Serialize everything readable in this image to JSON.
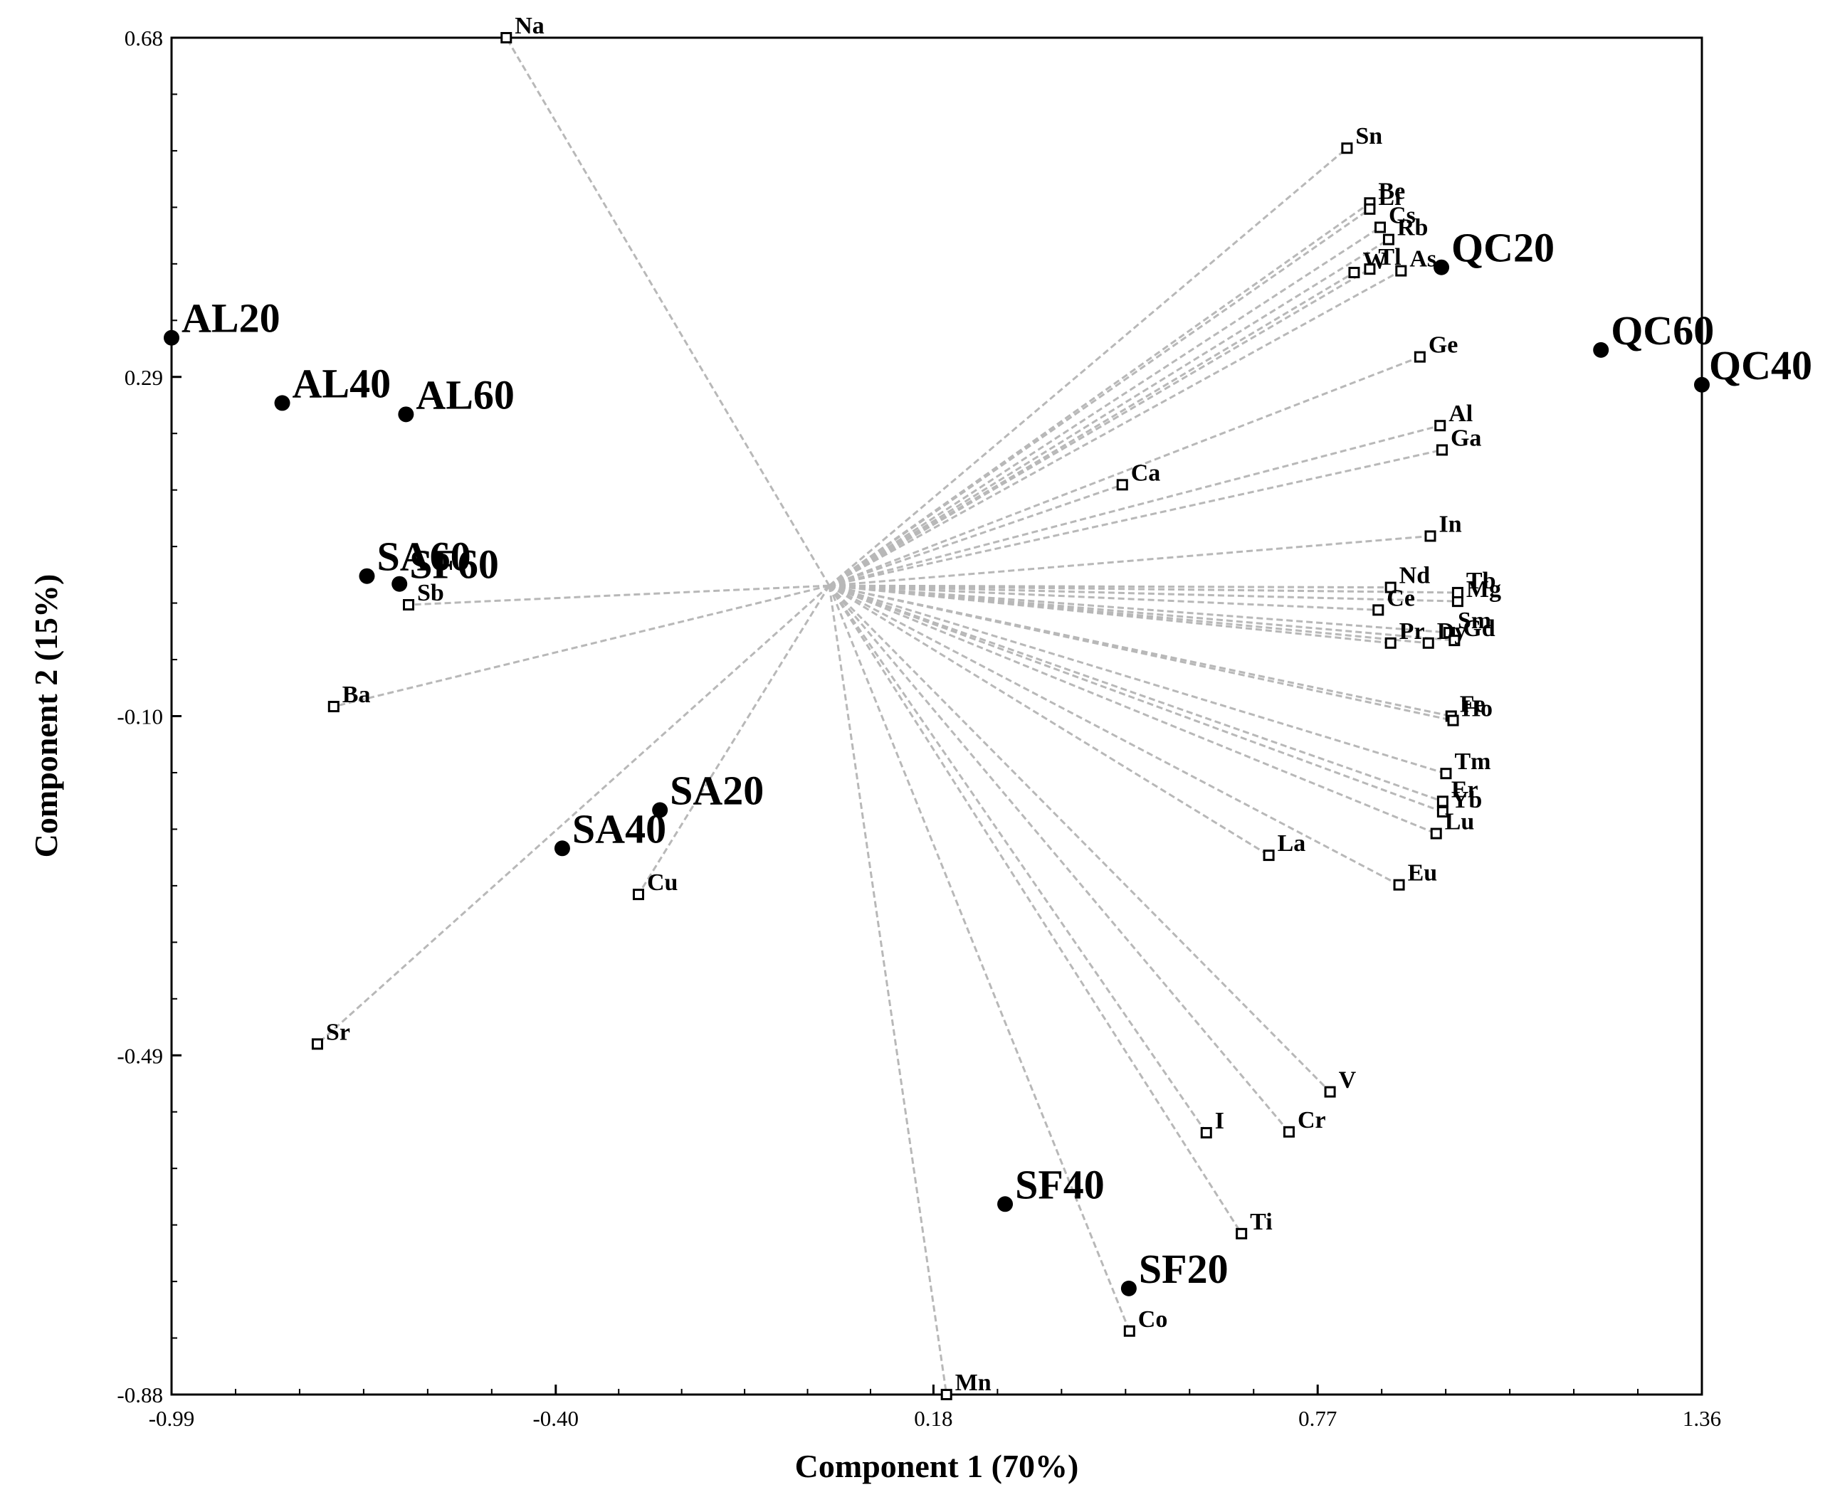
{
  "chart_data": {
    "type": "scatter",
    "title": "",
    "xlabel": "Component 1 (70%)",
    "ylabel": "Component 2 (15%)",
    "xlim": [
      -0.99,
      1.36
    ],
    "ylim": [
      -0.88,
      0.68
    ],
    "xticks": [
      "-0.99",
      "-0.40",
      "0.18",
      "0.77",
      "1.36"
    ],
    "yticks": [
      "0.68",
      "0.29",
      "-0.10",
      "-0.49",
      "-0.88"
    ],
    "origin": [
      0.02,
      0.05
    ],
    "samples": [
      {
        "name": "AL20",
        "x": -0.99,
        "y": 0.335
      },
      {
        "name": "AL40",
        "x": -0.82,
        "y": 0.26
      },
      {
        "name": "AL60",
        "x": -0.63,
        "y": 0.247
      },
      {
        "name": "SA60",
        "x": -0.69,
        "y": 0.061
      },
      {
        "name": "SF60",
        "x": -0.64,
        "y": 0.052
      },
      {
        "name": "SA20",
        "x": -0.24,
        "y": -0.208
      },
      {
        "name": "SA40",
        "x": -0.39,
        "y": -0.252
      },
      {
        "name": "SF40",
        "x": 0.29,
        "y": -0.661
      },
      {
        "name": "SF20",
        "x": 0.48,
        "y": -0.758
      },
      {
        "name": "QC20",
        "x": 0.96,
        "y": 0.416
      },
      {
        "name": "QC60",
        "x": 1.205,
        "y": 0.321
      },
      {
        "name": "QC40",
        "x": 1.36,
        "y": 0.281
      }
    ],
    "variables": [
      {
        "name": "Na",
        "x": -0.476,
        "y": 0.68
      },
      {
        "name": "Sn",
        "x": 0.815,
        "y": 0.553
      },
      {
        "name": "Be",
        "x": 0.85,
        "y": 0.49
      },
      {
        "name": "Li",
        "x": 0.85,
        "y": 0.483
      },
      {
        "name": "Cs",
        "x": 0.866,
        "y": 0.462
      },
      {
        "name": "W",
        "x": 0.826,
        "y": 0.41
      },
      {
        "name": "Rb",
        "x": 0.879,
        "y": 0.448
      },
      {
        "name": "Tl",
        "x": 0.85,
        "y": 0.414
      },
      {
        "name": "As",
        "x": 0.898,
        "y": 0.412
      },
      {
        "name": "Ge",
        "x": 0.927,
        "y": 0.313
      },
      {
        "name": "Al",
        "x": 0.958,
        "y": 0.234
      },
      {
        "name": "Ga",
        "x": 0.961,
        "y": 0.206
      },
      {
        "name": "Ca",
        "x": 0.47,
        "y": 0.166
      },
      {
        "name": "In",
        "x": 0.943,
        "y": 0.107
      },
      {
        "name": "Nd",
        "x": 0.882,
        "y": 0.048
      },
      {
        "name": "Mg",
        "x": 0.985,
        "y": 0.032
      },
      {
        "name": "Tb",
        "x": 0.985,
        "y": 0.042
      },
      {
        "name": "Ce",
        "x": 0.863,
        "y": 0.022
      },
      {
        "name": "Sm",
        "x": 0.972,
        "y": -0.004
      },
      {
        "name": "Gd",
        "x": 0.98,
        "y": -0.013
      },
      {
        "name": "Pr",
        "x": 0.882,
        "y": -0.016
      },
      {
        "name": "Dy",
        "x": 0.94,
        "y": -0.016
      },
      {
        "name": "Fe",
        "x": 0.975,
        "y": -0.1
      },
      {
        "name": "Ho",
        "x": 0.978,
        "y": -0.105
      },
      {
        "name": "Tm",
        "x": 0.967,
        "y": -0.166
      },
      {
        "name": "Er",
        "x": 0.962,
        "y": -0.198
      },
      {
        "name": "Yb",
        "x": 0.962,
        "y": -0.21
      },
      {
        "name": "Lu",
        "x": 0.952,
        "y": -0.235
      },
      {
        "name": "La",
        "x": 0.695,
        "y": -0.26
      },
      {
        "name": "Eu",
        "x": 0.895,
        "y": -0.294
      },
      {
        "name": "Sb",
        "x": -0.626,
        "y": 0.028
      },
      {
        "name": "Ba",
        "x": -0.741,
        "y": -0.089
      },
      {
        "name": "Cu",
        "x": -0.273,
        "y": -0.305
      },
      {
        "name": "Sr",
        "x": -0.766,
        "y": -0.477
      },
      {
        "name": "V",
        "x": 0.789,
        "y": -0.532
      },
      {
        "name": "I",
        "x": 0.599,
        "y": -0.579
      },
      {
        "name": "Cr",
        "x": 0.726,
        "y": -0.578
      },
      {
        "name": "Ti",
        "x": 0.653,
        "y": -0.695
      },
      {
        "name": "Co",
        "x": 0.481,
        "y": -0.807
      },
      {
        "name": "Mn",
        "x": 0.2,
        "y": -0.88
      }
    ]
  }
}
